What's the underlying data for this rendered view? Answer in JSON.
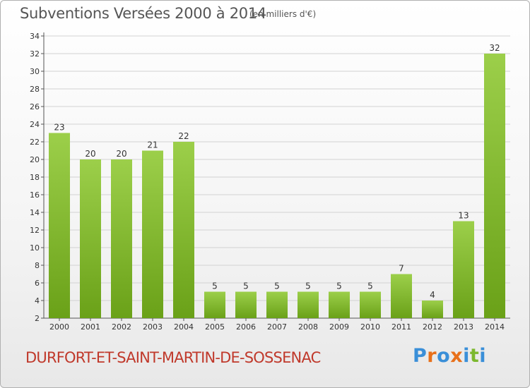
{
  "header": {
    "title": "Subventions Versées 2000 à 2014",
    "unit": "(en milliers d'€)"
  },
  "footer": {
    "commune": "DURFORT-ET-SAINT-MARTIN-DE-SOSSENAC",
    "logo_text": "Proxiti"
  },
  "colors": {
    "bar_light": "#9ccf4a",
    "bar_dark": "#6aa118",
    "commune_text": "#c0392b",
    "logo_letters": [
      "#3a8fd8",
      "#e8701a",
      "#3a8fd8",
      "#e8701a",
      "#3a8fd8",
      "#7cb82e",
      "#3a8fd8"
    ]
  },
  "chart_data": {
    "type": "bar",
    "title": "Subventions Versées 2000 à 2014",
    "subtitle": "(en milliers d'€)",
    "categories": [
      "2000",
      "2001",
      "2002",
      "2003",
      "2004",
      "2005",
      "2006",
      "2007",
      "2008",
      "2009",
      "2010",
      "2011",
      "2012",
      "2013",
      "2014"
    ],
    "values": [
      23,
      20,
      20,
      21,
      22,
      5,
      5,
      5,
      5,
      5,
      5,
      7,
      4,
      13,
      32
    ],
    "ylim": [
      2,
      34
    ],
    "yticks": [
      2,
      4,
      6,
      8,
      10,
      12,
      14,
      16,
      18,
      20,
      22,
      24,
      26,
      28,
      30,
      32,
      34
    ],
    "grid": "horizontal",
    "data_labels": true
  }
}
